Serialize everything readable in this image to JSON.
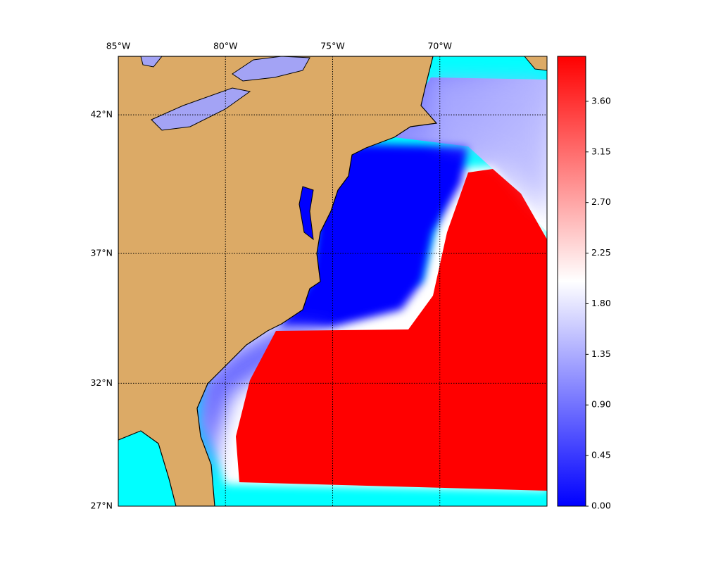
{
  "map": {
    "xlim": [
      -85,
      -65
    ],
    "ylim": [
      27,
      44
    ],
    "xticks": [
      {
        "value": -85,
        "label": "85°W"
      },
      {
        "value": -80,
        "label": "80°W"
      },
      {
        "value": -75,
        "label": "75°W"
      },
      {
        "value": -70,
        "label": "70°W"
      }
    ],
    "yticks": [
      {
        "value": 27,
        "label": "27°N"
      },
      {
        "value": 32,
        "label": "32°N"
      },
      {
        "value": 37,
        "label": "37°N"
      },
      {
        "value": 42,
        "label": "42°N"
      }
    ]
  },
  "colorbar": {
    "lim": [
      0,
      4.0
    ],
    "ticks": [
      {
        "value": 0,
        "label": "0.00"
      },
      {
        "value": 0.45,
        "label": "0.45"
      },
      {
        "value": 0.9,
        "label": "0.90"
      },
      {
        "value": 1.35,
        "label": "1.35"
      },
      {
        "value": 1.8,
        "label": "1.80"
      },
      {
        "value": 2.25,
        "label": "2.25"
      },
      {
        "value": 2.7,
        "label": "2.70"
      },
      {
        "value": 3.15,
        "label": "3.15"
      },
      {
        "value": 3.6,
        "label": "3.60"
      }
    ]
  }
}
